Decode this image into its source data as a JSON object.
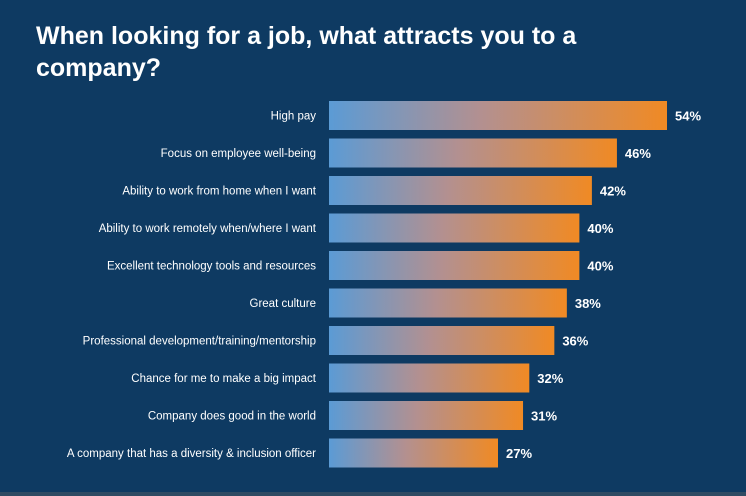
{
  "chart_data": {
    "type": "bar",
    "orientation": "horizontal",
    "title": "When looking for a job, what attracts you to a company?",
    "categories": [
      "High pay",
      "Focus on employee well-being",
      "Ability to work from home when I want",
      "Ability to work remotely when/where I want",
      "Excellent technology tools and resources",
      "Great culture",
      "Professional development/training/mentorship",
      "Chance for me to make a big impact",
      "Company does good in the world",
      "A company that has a diversity & inclusion officer"
    ],
    "values": [
      54,
      46,
      42,
      40,
      40,
      38,
      36,
      32,
      31,
      27
    ],
    "value_labels": [
      "54%",
      "46%",
      "42%",
      "40%",
      "40%",
      "38%",
      "36%",
      "32%",
      "31%",
      "27%"
    ],
    "xlabel": "",
    "ylabel": "",
    "xlim": [
      0,
      54
    ],
    "grid": false,
    "colors": {
      "background": "#0e3a62",
      "bar_start": "#5b9bd5",
      "bar_end": "#f08a24",
      "text": "#ffffff"
    }
  }
}
